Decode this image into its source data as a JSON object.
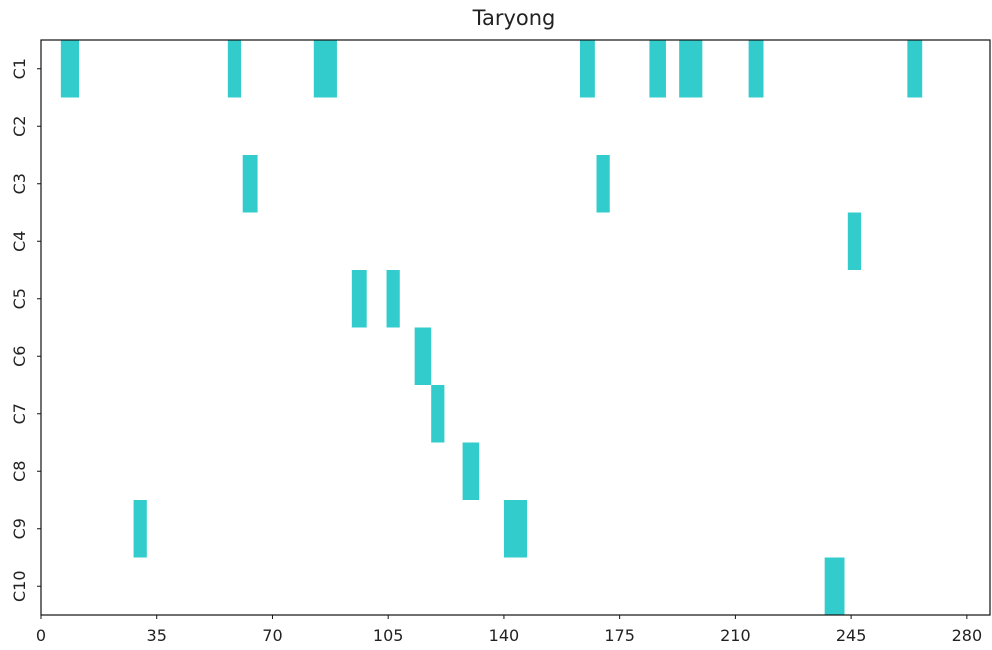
{
  "chart_data": {
    "type": "bar",
    "title": "Taryong",
    "xlabel": "",
    "ylabel": "",
    "xlim": [
      0,
      287
    ],
    "xticks": [
      0,
      35,
      70,
      105,
      140,
      175,
      210,
      245,
      280
    ],
    "row_labels": [
      "C1",
      "C2",
      "C3",
      "C4",
      "C5",
      "C6",
      "C7",
      "C8",
      "C9",
      "C10"
    ],
    "bar_color": "#33cccc",
    "background": "#ffffff",
    "grid": false,
    "legend": "none",
    "segments": [
      {
        "row": "C1",
        "start": 6,
        "end": 11.5
      },
      {
        "row": "C1",
        "start": 56.5,
        "end": 60.5
      },
      {
        "row": "C1",
        "start": 82.5,
        "end": 89.5
      },
      {
        "row": "C1",
        "start": 163,
        "end": 167.5
      },
      {
        "row": "C1",
        "start": 184,
        "end": 189
      },
      {
        "row": "C1",
        "start": 193,
        "end": 200
      },
      {
        "row": "C1",
        "start": 214,
        "end": 218.5
      },
      {
        "row": "C1",
        "start": 262,
        "end": 266.5
      },
      {
        "row": "C3",
        "start": 61,
        "end": 65.5
      },
      {
        "row": "C3",
        "start": 168,
        "end": 172
      },
      {
        "row": "C4",
        "start": 244,
        "end": 248
      },
      {
        "row": "C5",
        "start": 94,
        "end": 98.5
      },
      {
        "row": "C5",
        "start": 104.5,
        "end": 108.5
      },
      {
        "row": "C6",
        "start": 113,
        "end": 118
      },
      {
        "row": "C7",
        "start": 118,
        "end": 122
      },
      {
        "row": "C8",
        "start": 127.5,
        "end": 132.5
      },
      {
        "row": "C9",
        "start": 28,
        "end": 32
      },
      {
        "row": "C9",
        "start": 140,
        "end": 147
      },
      {
        "row": "C10",
        "start": 237,
        "end": 243
      }
    ]
  }
}
